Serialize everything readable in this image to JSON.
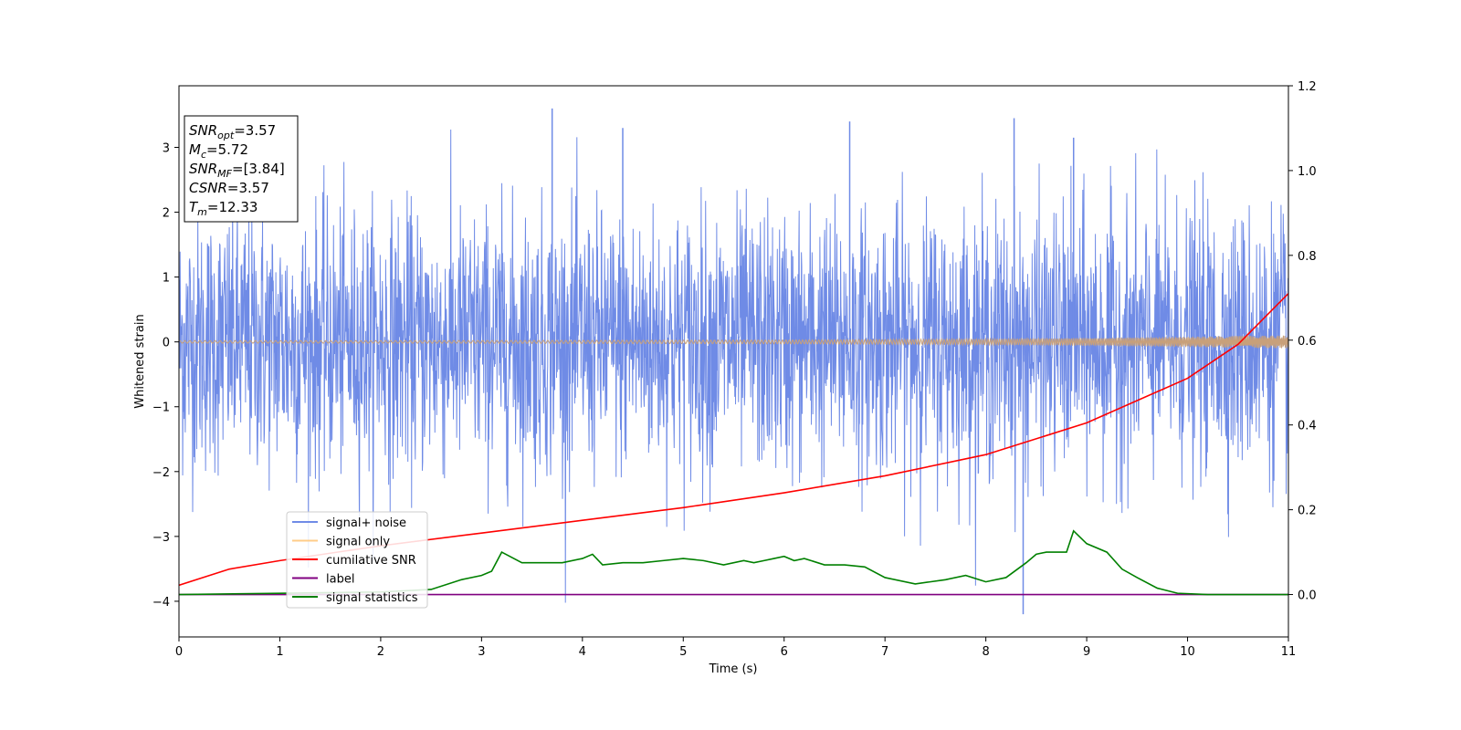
{
  "chart_data": {
    "type": "line",
    "xlabel": "Time (s)",
    "ylabel": "Whitened strain",
    "xlim": [
      0,
      11
    ],
    "ylim_left": [
      -4.55,
      3.95
    ],
    "ylim_right": [
      -0.1,
      1.2
    ],
    "x_ticks": [
      "0",
      "1",
      "2",
      "3",
      "4",
      "5",
      "6",
      "7",
      "8",
      "9",
      "10",
      "11"
    ],
    "y_ticks_left": [
      "−4",
      "−3",
      "−2",
      "−1",
      "0",
      "1",
      "2",
      "3"
    ],
    "y_ticks_right": [
      "0.0",
      "0.2",
      "0.4",
      "0.6",
      "0.8",
      "1.0",
      "1.2"
    ],
    "y_ticks_left_values": [
      -4,
      -3,
      -2,
      -1,
      0,
      1,
      2,
      3
    ],
    "y_ticks_right_values": [
      0.0,
      0.2,
      0.4,
      0.6,
      0.8,
      1.0,
      1.2
    ],
    "legend_position": "lower-left",
    "colors": {
      "signal_noise": "#6f8be6",
      "signal_only": "#ffcc88",
      "signal_only_fill": "#c8a07a",
      "cumulative_snr": "#ff0000",
      "label": "#800080",
      "signal_statistics": "#008000"
    },
    "series": [
      {
        "name": "signal+ noise",
        "axis": "left",
        "description_style": "dense noise",
        "approx_band": {
          "std": 1.0,
          "max": 3.6,
          "min": -4.2
        },
        "peaks": [
          {
            "x": 3.7,
            "y": 3.6
          },
          {
            "x": 8.37,
            "y": -4.2
          },
          {
            "x": 8.28,
            "y": 3.45
          },
          {
            "x": 6.65,
            "y": 3.4
          },
          {
            "x": 4.4,
            "y": 3.3
          },
          {
            "x": 8.87,
            "y": 3.15
          }
        ]
      },
      {
        "name": "signal only",
        "axis": "left",
        "description_style": "small chirp growing in amplitude",
        "envelope": {
          "x": [
            0,
            2,
            4,
            6,
            8,
            9,
            10,
            11
          ],
          "y": [
            0.02,
            0.02,
            0.025,
            0.03,
            0.045,
            0.06,
            0.08,
            0.1
          ]
        }
      },
      {
        "name": "cumilative SNR",
        "axis": "right",
        "x": [
          0,
          0.5,
          1,
          2,
          3,
          4,
          5,
          6,
          7,
          8,
          9,
          10,
          10.5,
          11
        ],
        "y": [
          0.022,
          0.06,
          0.08,
          0.115,
          0.145,
          0.175,
          0.205,
          0.24,
          0.28,
          0.33,
          0.405,
          0.51,
          0.59,
          0.71
        ]
      },
      {
        "name": "label",
        "axis": "right",
        "x": [
          0,
          11
        ],
        "y": [
          0.0,
          0.0
        ]
      },
      {
        "name": "signal statistics",
        "axis": "right",
        "x": [
          0,
          1,
          2,
          2.5,
          2.8,
          3.0,
          3.1,
          3.2,
          3.4,
          3.6,
          3.8,
          4.0,
          4.1,
          4.2,
          4.4,
          4.6,
          4.8,
          5.0,
          5.2,
          5.4,
          5.6,
          5.7,
          5.8,
          5.9,
          6.0,
          6.1,
          6.2,
          6.4,
          6.6,
          6.8,
          7.0,
          7.3,
          7.6,
          7.8,
          8.0,
          8.2,
          8.4,
          8.5,
          8.6,
          8.8,
          8.87,
          9.0,
          9.2,
          9.35,
          9.5,
          9.7,
          9.9,
          10.2,
          11
        ],
        "y": [
          0.0,
          0.003,
          0.006,
          0.012,
          0.035,
          0.045,
          0.055,
          0.1,
          0.075,
          0.075,
          0.075,
          0.085,
          0.095,
          0.07,
          0.075,
          0.075,
          0.08,
          0.085,
          0.08,
          0.07,
          0.08,
          0.075,
          0.08,
          0.085,
          0.09,
          0.08,
          0.085,
          0.07,
          0.07,
          0.065,
          0.04,
          0.025,
          0.035,
          0.045,
          0.03,
          0.04,
          0.075,
          0.095,
          0.1,
          0.1,
          0.15,
          0.12,
          0.1,
          0.06,
          0.04,
          0.015,
          0.003,
          0.0,
          0.0
        ]
      }
    ],
    "annotation_box": [
      {
        "sym": "SNR",
        "sub": "opt",
        "val": "=3.57"
      },
      {
        "sym": "M",
        "sub": "c",
        "val": "=5.72"
      },
      {
        "sym": "SNR",
        "sub": "MF",
        "val": "=[3.84]"
      },
      {
        "sym": "CSNR",
        "sub": "",
        "val": "=3.57"
      },
      {
        "sym": "T",
        "sub": "m",
        "val": "=12.33"
      }
    ]
  }
}
